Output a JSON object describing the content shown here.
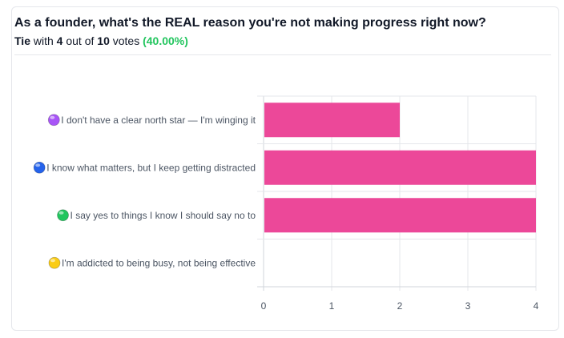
{
  "poll": {
    "question": "As a founder, what's the REAL reason you're not making progress right now?",
    "result_word": "Tie",
    "with_text": "with",
    "votes_top": "4",
    "out_of_text": "out of",
    "votes_total": "10",
    "votes_text": "votes",
    "percentage": "(40.00%)"
  },
  "colors": {
    "bar": "#ec4899",
    "grid": "#e5e7eb",
    "axis": "#d1d5db",
    "percentage": "#22c55e"
  },
  "chart_data": {
    "type": "bar",
    "orientation": "horizontal",
    "categories": [
      {
        "label": "I don't have a clear north star — I'm winging it",
        "icon": "purple-circle-icon",
        "icon_color": "#a855f7"
      },
      {
        "label": "I know what matters, but I keep getting distracted",
        "icon": "blue-circle-icon",
        "icon_color": "#2563eb"
      },
      {
        "label": "I say yes to things I know I should say no to",
        "icon": "green-circle-icon",
        "icon_color": "#22c55e"
      },
      {
        "label": "I'm addicted to being busy, not being effective",
        "icon": "yellow-circle-icon",
        "icon_color": "#facc15"
      }
    ],
    "values": [
      2,
      4,
      4,
      0
    ],
    "xlim": [
      0,
      4
    ],
    "xticks": [
      "0",
      "1",
      "2",
      "3",
      "4"
    ],
    "grid": true,
    "legend": "none"
  }
}
